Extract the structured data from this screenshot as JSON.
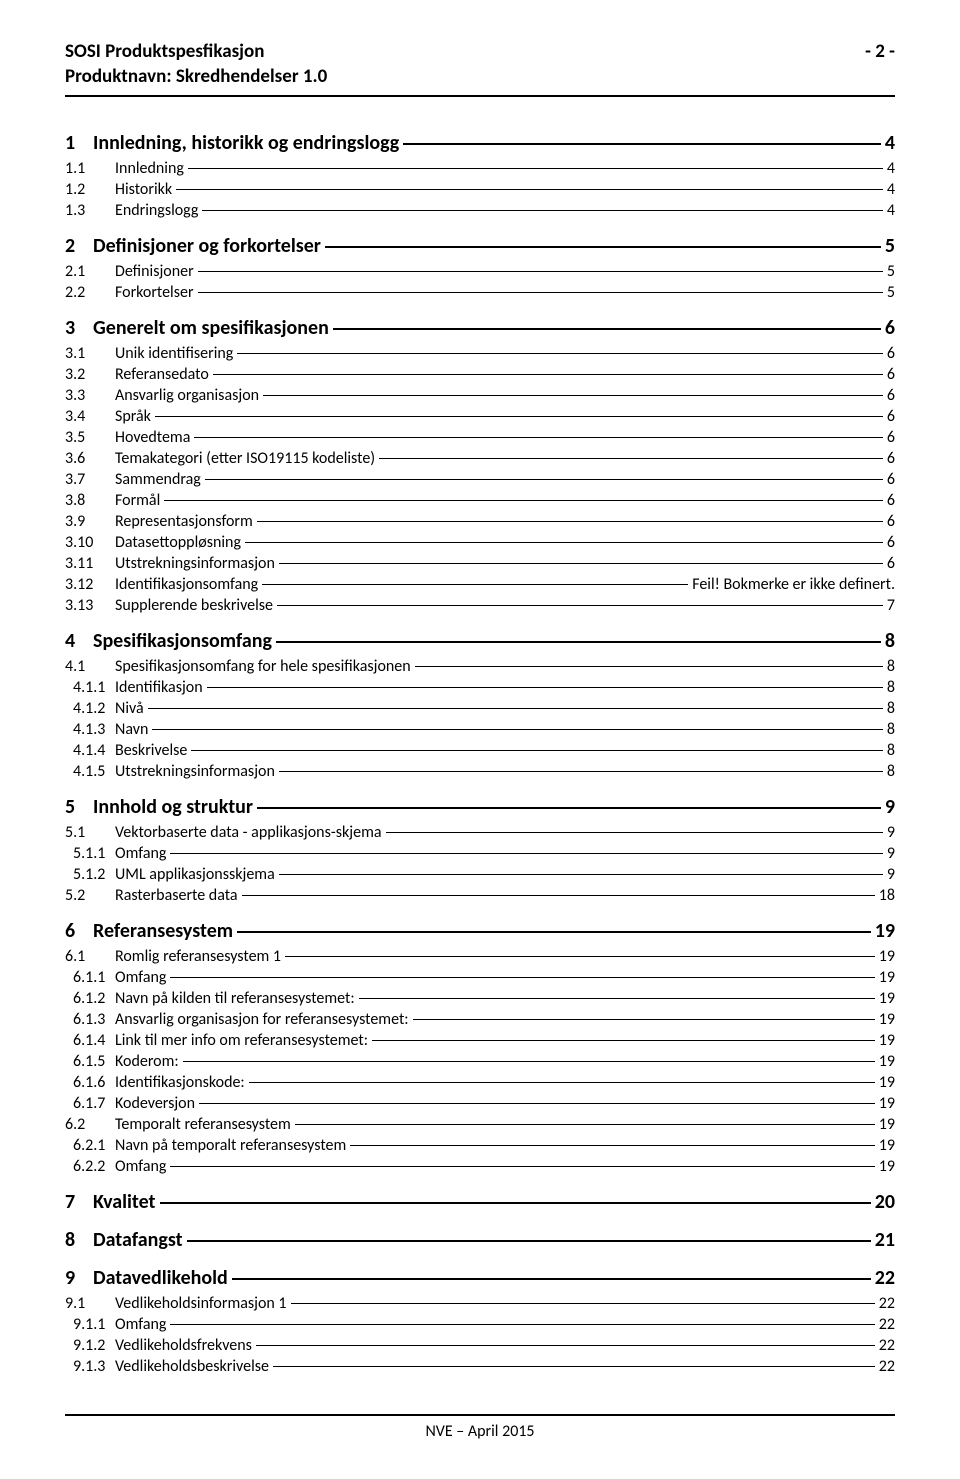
{
  "header": {
    "line1": "SOSI Produktspesfikasjon",
    "line2": "Produktnavn: Skredhendelser 1.0",
    "page_indicator": "- 2 -"
  },
  "footer": {
    "text": "NVE – April 2015"
  },
  "toc": [
    {
      "level": 1,
      "num": "1",
      "label": "Innledning, historikk og endringslogg",
      "page": "4"
    },
    {
      "level": 2,
      "num": "1.1",
      "label": "Innledning",
      "page": "4"
    },
    {
      "level": 2,
      "num": "1.2",
      "label": "Historikk",
      "page": "4"
    },
    {
      "level": 2,
      "num": "1.3",
      "label": "Endringslogg",
      "page": "4"
    },
    {
      "level": 1,
      "num": "2",
      "label": "Definisjoner og forkortelser",
      "page": "5"
    },
    {
      "level": 2,
      "num": "2.1",
      "label": "Definisjoner",
      "page": "5"
    },
    {
      "level": 2,
      "num": "2.2",
      "label": "Forkortelser",
      "page": "5"
    },
    {
      "level": 1,
      "num": "3",
      "label": "Generelt om spesifikasjonen",
      "page": "6"
    },
    {
      "level": 2,
      "num": "3.1",
      "label": "Unik identifisering",
      "page": "6"
    },
    {
      "level": 2,
      "num": "3.2",
      "label": "Referansedato",
      "page": "6"
    },
    {
      "level": 2,
      "num": "3.3",
      "label": "Ansvarlig organisasjon",
      "page": "6"
    },
    {
      "level": 2,
      "num": "3.4",
      "label": "Språk",
      "page": "6"
    },
    {
      "level": 2,
      "num": "3.5",
      "label": "Hovedtema",
      "page": "6"
    },
    {
      "level": 2,
      "num": "3.6",
      "label": "Temakategori (etter ISO19115 kodeliste)",
      "page": "6"
    },
    {
      "level": 2,
      "num": "3.7",
      "label": "Sammendrag",
      "page": "6"
    },
    {
      "level": 2,
      "num": "3.8",
      "label": "Formål",
      "page": "6"
    },
    {
      "level": 2,
      "num": "3.9",
      "label": "Representasjonsform",
      "page": "6"
    },
    {
      "level": 2,
      "num": "3.10",
      "label": "Datasettoppløsning",
      "page": "6"
    },
    {
      "level": 2,
      "num": "3.11",
      "label": "Utstrekningsinformasjon",
      "page": "6"
    },
    {
      "level": 2,
      "num": "3.12",
      "label": "Identifikasjonsomfang",
      "page": "Feil! Bokmerke er ikke definert."
    },
    {
      "level": 2,
      "num": "3.13",
      "label": "Supplerende beskrivelse",
      "page": "7"
    },
    {
      "level": 1,
      "num": "4",
      "label": "Spesifikasjonsomfang",
      "page": "8"
    },
    {
      "level": 2,
      "num": "4.1",
      "label": "Spesifikasjonsomfang for hele spesifikasjonen",
      "page": "8"
    },
    {
      "level": 3,
      "num": "4.1.1",
      "label": "Identifikasjon",
      "page": "8"
    },
    {
      "level": 3,
      "num": "4.1.2",
      "label": "Nivå",
      "page": "8"
    },
    {
      "level": 3,
      "num": "4.1.3",
      "label": "Navn",
      "page": "8"
    },
    {
      "level": 3,
      "num": "4.1.4",
      "label": "Beskrivelse",
      "page": "8"
    },
    {
      "level": 3,
      "num": "4.1.5",
      "label": "Utstrekningsinformasjon",
      "page": "8"
    },
    {
      "level": 1,
      "num": "5",
      "label": "Innhold og struktur",
      "page": "9"
    },
    {
      "level": 2,
      "num": "5.1",
      "label": "Vektorbaserte data - applikasjons-skjema",
      "page": "9"
    },
    {
      "level": 3,
      "num": "5.1.1",
      "label": "Omfang",
      "page": "9"
    },
    {
      "level": 3,
      "num": "5.1.2",
      "label": "UML applikasjonsskjema",
      "page": "9"
    },
    {
      "level": 2,
      "num": "5.2",
      "label": "Rasterbaserte data",
      "page": "18"
    },
    {
      "level": 1,
      "num": "6",
      "label": "Referansesystem",
      "page": "19"
    },
    {
      "level": 2,
      "num": "6.1",
      "label": "Romlig referansesystem 1",
      "page": "19"
    },
    {
      "level": 3,
      "num": "6.1.1",
      "label": "Omfang",
      "page": "19"
    },
    {
      "level": 3,
      "num": "6.1.2",
      "label": "Navn på kilden til referansesystemet:",
      "page": "19"
    },
    {
      "level": 3,
      "num": "6.1.3",
      "label": "Ansvarlig organisasjon for referansesystemet:",
      "page": "19"
    },
    {
      "level": 3,
      "num": "6.1.4",
      "label": "Link til mer info om referansesystemet:",
      "page": "19"
    },
    {
      "level": 3,
      "num": "6.1.5",
      "label": "Koderom:",
      "page": "19"
    },
    {
      "level": 3,
      "num": "6.1.6",
      "label": "Identifikasjonskode:",
      "page": "19"
    },
    {
      "level": 3,
      "num": "6.1.7",
      "label": "Kodeversjon",
      "page": "19"
    },
    {
      "level": 2,
      "num": "6.2",
      "label": "Temporalt referansesystem",
      "page": "19"
    },
    {
      "level": 3,
      "num": "6.2.1",
      "label": "Navn på temporalt referansesystem",
      "page": "19"
    },
    {
      "level": 3,
      "num": "6.2.2",
      "label": "Omfang",
      "page": "19"
    },
    {
      "level": 1,
      "num": "7",
      "label": "Kvalitet",
      "page": "20"
    },
    {
      "level": 1,
      "num": "8",
      "label": "Datafangst",
      "page": "21"
    },
    {
      "level": 1,
      "num": "9",
      "label": "Datavedlikehold",
      "page": "22"
    },
    {
      "level": 2,
      "num": "9.1",
      "label": "Vedlikeholdsinformasjon 1",
      "page": "22"
    },
    {
      "level": 3,
      "num": "9.1.1",
      "label": "Omfang",
      "page": "22"
    },
    {
      "level": 3,
      "num": "9.1.2",
      "label": "Vedlikeholdsfrekvens",
      "page": "22"
    },
    {
      "level": 3,
      "num": "9.1.3",
      "label": "Vedlikeholdsbeskrivelse",
      "page": "22"
    }
  ]
}
